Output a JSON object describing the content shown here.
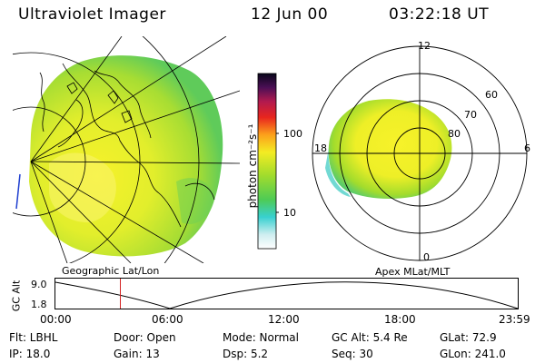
{
  "header": {
    "instrument": "Ultraviolet Imager",
    "date": "12 Jun 00",
    "time": "03:22:18 UT"
  },
  "geo_panel": {
    "caption": "Geographic Lat/Lon"
  },
  "colorbar": {
    "unit_label": "photon cm⁻²s⁻¹",
    "tick_high": "100",
    "tick_low": "10"
  },
  "polar_panel": {
    "caption": "Apex MLat/MLT",
    "mlt_labels": {
      "top": "12",
      "left": "18",
      "right": "6",
      "bottom": "0"
    },
    "lat_labels": [
      "60",
      "70",
      "80"
    ]
  },
  "altitude_strip": {
    "axis_label": "GC Alt",
    "y_ticks": [
      "9.0",
      "1.8"
    ],
    "x_ticks": [
      "00:00",
      "06:00",
      "12:00",
      "18:00",
      "23:59"
    ],
    "marker_time_hours": 3.372
  },
  "status": [
    [
      "Flt: LBHL",
      "Door: Open",
      "Mode: Normal",
      "GC Alt: 5.4 Re",
      "GLat: 72.9"
    ],
    [
      "IP: 18.0",
      "Gain: 13",
      "Dsp: 5.2",
      "Seq: 30",
      "GLon: 241.0"
    ]
  ]
}
